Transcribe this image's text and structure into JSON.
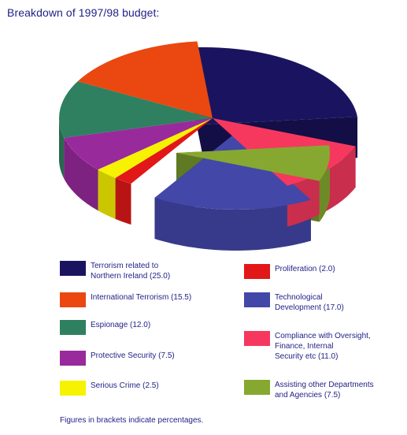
{
  "title": "Breakdown of 1997/98 budget:",
  "footnote": "Figures in brackets indicate percentages.",
  "legend": [
    {
      "label": "Terrorism related to\nNorthern Ireland (25.0)",
      "color": "#1a1460"
    },
    {
      "label": "International Terrorism (15.5)",
      "color": "#ea4810"
    },
    {
      "label": "Espionage (12.0)",
      "color": "#2f8060"
    },
    {
      "label": "Protective Security (7.5)",
      "color": "#992a9c"
    },
    {
      "label": "Serious Crime (2.5)",
      "color": "#f7f200"
    },
    {
      "label": "Proliferation (2.0)",
      "color": "#e21818"
    },
    {
      "label": "Technological\nDevelopment (17.0)",
      "color": "#4347a8"
    },
    {
      "label": "Compliance with Oversight,\nFinance, Internal\nSecurity etc (11.0)",
      "color": "#f6385e"
    },
    {
      "label": "Assisting other Departments\nand Agencies (7.5)",
      "color": "#86a830"
    }
  ],
  "chart_data": {
    "type": "pie",
    "title": "Breakdown of 1997/98 budget:",
    "slices": [
      {
        "label": "Terrorism related to Northern Ireland",
        "value": 25.0,
        "color": "#1a1460",
        "exploded": true
      },
      {
        "label": "International Terrorism",
        "value": 15.5,
        "color": "#ea4810"
      },
      {
        "label": "Espionage",
        "value": 12.0,
        "color": "#2f8060"
      },
      {
        "label": "Protective Security",
        "value": 7.5,
        "color": "#992a9c"
      },
      {
        "label": "Serious Crime",
        "value": 2.5,
        "color": "#f7f200"
      },
      {
        "label": "Proliferation",
        "value": 2.0,
        "color": "#e21818"
      },
      {
        "label": "Technological Development",
        "value": 17.0,
        "color": "#4347a8",
        "exploded": true
      },
      {
        "label": "Compliance with Oversight, Finance, Internal Security etc",
        "value": 11.0,
        "color": "#f6385e"
      },
      {
        "label": "Assisting other Departments and Agencies",
        "value": 7.5,
        "color": "#86a830",
        "exploded": true
      }
    ],
    "note": "Figures in brackets indicate percentages."
  }
}
